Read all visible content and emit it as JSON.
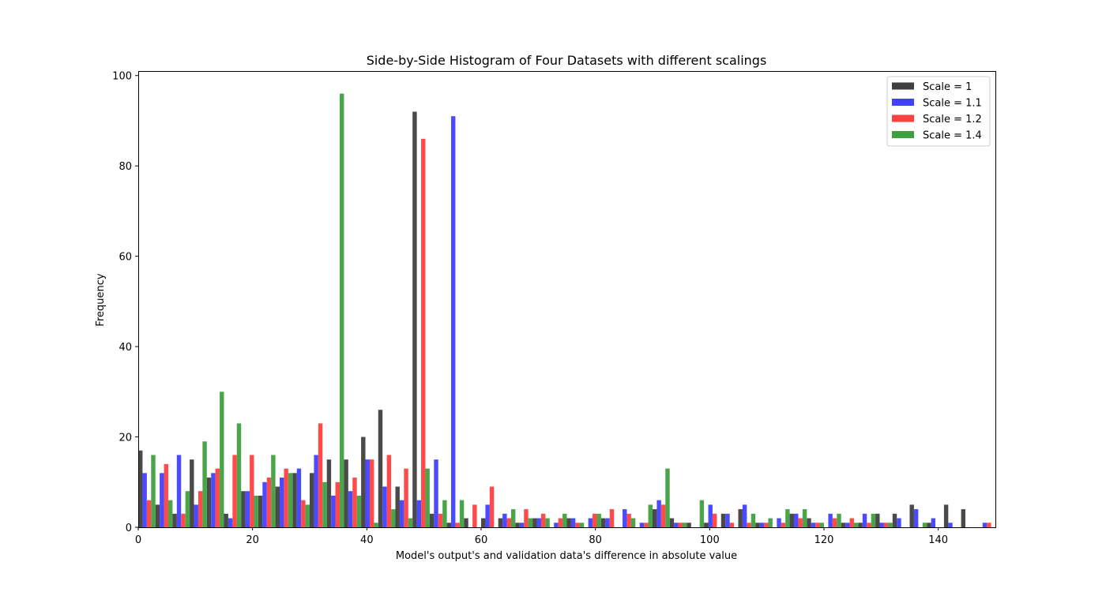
{
  "chart_data": {
    "type": "bar",
    "title": "Side-by-Side Histogram of Four Datasets with different scalings",
    "xlabel": "Model's output's and validation data's difference in absolute value",
    "ylabel": "Frequency",
    "xlim": [
      0,
      150
    ],
    "ylim": [
      0,
      101
    ],
    "bin_width": 3,
    "bin_starts": [
      0,
      3,
      6,
      9,
      12,
      15,
      18,
      21,
      24,
      27,
      30,
      33,
      36,
      39,
      42,
      45,
      48,
      51,
      54,
      57,
      60,
      63,
      66,
      69,
      72,
      75,
      78,
      81,
      84,
      87,
      90,
      93,
      96,
      99,
      102,
      105,
      108,
      111,
      114,
      117,
      120,
      123,
      126,
      129,
      132,
      135,
      138,
      141,
      144,
      147
    ],
    "x_ticks": [
      0,
      20,
      40,
      60,
      80,
      100,
      120,
      140
    ],
    "y_ticks": [
      0,
      20,
      40,
      60,
      80,
      100
    ],
    "grid": false,
    "legend_position": "top-right",
    "series": [
      {
        "name": "Scale = 1",
        "color": "#404040",
        "values": [
          17,
          5,
          3,
          15,
          11,
          3,
          8,
          7,
          9,
          12,
          12,
          15,
          15,
          20,
          26,
          9,
          92,
          3,
          1,
          2,
          2,
          2,
          1,
          2,
          0,
          2,
          0,
          2,
          0,
          0,
          4,
          2,
          1,
          1,
          3,
          4,
          1,
          0,
          3,
          2,
          0,
          1,
          1,
          3,
          3,
          5,
          1,
          5,
          4,
          0
        ]
      },
      {
        "name": "Scale = 1.1",
        "color": "#4040ff",
        "values": [
          12,
          12,
          16,
          5,
          12,
          2,
          8,
          10,
          11,
          13,
          16,
          7,
          8,
          15,
          9,
          6,
          6,
          15,
          91,
          0,
          5,
          3,
          1,
          2,
          1,
          2,
          2,
          2,
          4,
          1,
          6,
          1,
          0,
          5,
          3,
          5,
          1,
          2,
          3,
          1,
          3,
          1,
          3,
          1,
          2,
          4,
          2,
          1,
          0,
          1
        ]
      },
      {
        "name": "Scale = 1.2",
        "color": "#ff4040",
        "values": [
          6,
          14,
          3,
          8,
          13,
          16,
          16,
          11,
          13,
          6,
          23,
          10,
          11,
          15,
          16,
          13,
          86,
          3,
          1,
          5,
          9,
          2,
          4,
          3,
          2,
          1,
          3,
          4,
          3,
          1,
          5,
          1,
          0,
          3,
          1,
          1,
          1,
          1,
          2,
          1,
          2,
          2,
          1,
          1,
          0,
          0,
          0,
          0,
          0,
          1
        ]
      },
      {
        "name": "Scale = 1.4",
        "color": "#40a040",
        "values": [
          16,
          6,
          8,
          19,
          30,
          23,
          7,
          16,
          12,
          5,
          10,
          96,
          7,
          1,
          4,
          2,
          13,
          6,
          6,
          0,
          0,
          4,
          2,
          2,
          3,
          1,
          3,
          0,
          2,
          5,
          13,
          1,
          6,
          0,
          0,
          3,
          2,
          4,
          4,
          1,
          3,
          1,
          3,
          1,
          0,
          1,
          0,
          0,
          0,
          0
        ]
      }
    ]
  }
}
